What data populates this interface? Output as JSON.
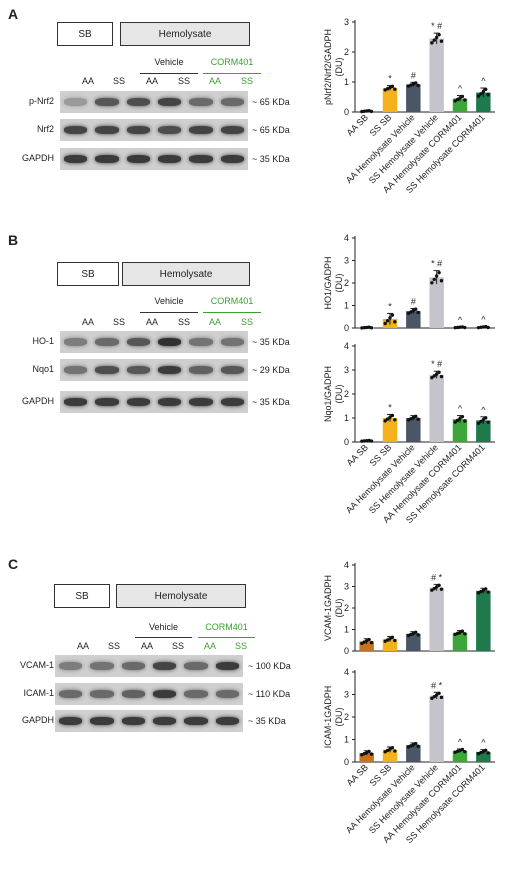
{
  "panels": {
    "A": {
      "letter": "A",
      "header": {
        "sb": "SB",
        "hemolysate": "Hemolysate",
        "vehicle": "Vehicle",
        "corm": "CORM401"
      },
      "lanes": [
        "AA",
        "SS",
        "AA",
        "SS",
        "AA",
        "SS"
      ],
      "rows": [
        {
          "label": "p-Nrf2",
          "kda": "~ 65 KDa",
          "intensity": [
            0.35,
            0.7,
            0.75,
            0.8,
            0.6,
            0.6
          ]
        },
        {
          "label": "Nrf2",
          "kda": "~ 65 KDa",
          "intensity": [
            0.8,
            0.8,
            0.8,
            0.75,
            0.8,
            0.8
          ]
        },
        {
          "label": "GAPDH",
          "kda": "~ 35 KDa",
          "intensity": [
            0.85,
            0.85,
            0.85,
            0.85,
            0.85,
            0.85
          ]
        }
      ]
    },
    "B": {
      "letter": "B",
      "header": {
        "sb": "SB",
        "hemolysate": "Hemolysate",
        "vehicle": "Vehicle",
        "corm": "CORM401"
      },
      "lanes": [
        "AA",
        "SS",
        "AA",
        "SS",
        "AA",
        "SS"
      ],
      "rows": [
        {
          "label": "HO-1",
          "kda": "~ 35 KDa",
          "intensity": [
            0.5,
            0.6,
            0.7,
            0.9,
            0.55,
            0.55
          ]
        },
        {
          "label": "Nqo1",
          "kda": "~ 29 KDa",
          "intensity": [
            0.55,
            0.75,
            0.7,
            0.85,
            0.65,
            0.7
          ]
        },
        {
          "label": "GAPDH",
          "kda": "~ 35 KDa",
          "intensity": [
            0.85,
            0.85,
            0.85,
            0.85,
            0.85,
            0.85
          ]
        }
      ]
    },
    "C": {
      "letter": "C",
      "header": {
        "sb": "SB",
        "hemolysate": "Hemolysate",
        "vehicle": "Vehicle",
        "corm": "CORM401"
      },
      "lanes": [
        "AA",
        "SS",
        "AA",
        "SS",
        "AA",
        "SS"
      ],
      "rows": [
        {
          "label": "VCAM-1",
          "kda": "~ 100 KDa",
          "intensity": [
            0.5,
            0.55,
            0.6,
            0.8,
            0.6,
            0.85
          ]
        },
        {
          "label": "ICAM-1",
          "kda": "~ 110 KDa",
          "intensity": [
            0.6,
            0.6,
            0.65,
            0.85,
            0.6,
            0.6
          ]
        },
        {
          "label": "GAPDH",
          "kda": "~ 35 KDa",
          "intensity": [
            0.85,
            0.85,
            0.85,
            0.85,
            0.85,
            0.85
          ]
        }
      ]
    }
  },
  "chart_data": [
    {
      "type": "bar",
      "panel": "A",
      "ylabel": "pNrf2/Nrf2/GADPH",
      "ylabel2": "(DU)",
      "ylim": [
        0,
        3
      ],
      "yticks": [
        0,
        1,
        2,
        3
      ],
      "categories": [
        "AA SB",
        "SS SB",
        "AA Hemolysate Vehicle",
        "SS Hemolysate Vehicle",
        "AA Hemolysate CORM401",
        "SS Hemolysate CORM401"
      ],
      "values": [
        0.03,
        0.8,
        0.92,
        2.45,
        0.45,
        0.65
      ],
      "errors": [
        0.02,
        0.08,
        0.07,
        0.18,
        0.1,
        0.15
      ],
      "annotations": [
        "",
        "*",
        "#",
        "* #",
        "^",
        "^"
      ],
      "colors": [
        "#c8721c",
        "#f3b21c",
        "#4a5665",
        "#c5c4cc",
        "#3da63a",
        "#1e7a4d"
      ]
    },
    {
      "type": "bar",
      "panel": "B",
      "ylabel": "HO1/GADPH",
      "ylabel2": "(DU)",
      "ylim": [
        0,
        4
      ],
      "yticks": [
        0,
        1,
        2,
        3,
        4
      ],
      "categories": [
        "AA SB",
        "SS SB",
        "AA Hemolysate Vehicle",
        "SS Hemolysate Vehicle",
        "AA Hemolysate CORM401",
        "SS Hemolysate CORM401"
      ],
      "values": [
        0.02,
        0.4,
        0.75,
        2.25,
        0.03,
        0.04
      ],
      "errors": [
        0.02,
        0.25,
        0.12,
        0.3,
        0.02,
        0.03
      ],
      "annotations": [
        "",
        "*",
        "#",
        "* #",
        "^",
        "^"
      ],
      "colors": [
        "#c8721c",
        "#f3b21c",
        "#4a5665",
        "#c5c4cc",
        "#3da63a",
        "#1e7a4d"
      ]
    },
    {
      "type": "bar",
      "panel": "B",
      "ylabel": "Nqo1/GADPH",
      "ylabel2": "(DU)",
      "ylim": [
        0,
        4
      ],
      "yticks": [
        0,
        1,
        2,
        3,
        4
      ],
      "categories": [
        "AA SB",
        "SS SB",
        "AA Hemolysate Vehicle",
        "SS Hemolysate Vehicle",
        "AA Hemolysate CORM401",
        "SS Hemolysate CORM401"
      ],
      "values": [
        0.05,
        1.0,
        1.0,
        2.8,
        0.95,
        0.9
      ],
      "errors": [
        0.02,
        0.15,
        0.1,
        0.15,
        0.15,
        0.15
      ],
      "annotations": [
        "",
        "*",
        "",
        "* #",
        "^",
        "^"
      ],
      "colors": [
        "#c8721c",
        "#f3b21c",
        "#4a5665",
        "#c5c4cc",
        "#3da63a",
        "#1e7a4d"
      ]
    },
    {
      "type": "bar",
      "panel": "C",
      "ylabel": "VCAM-1GADPH",
      "ylabel2": "(DU)",
      "ylim": [
        0,
        4
      ],
      "yticks": [
        0,
        1,
        2,
        3,
        4
      ],
      "categories": [
        "AA SB",
        "SS SB",
        "AA Hemolysate Vehicle",
        "SS Hemolysate Vehicle",
        "AA Hemolysate CORM401",
        "SS Hemolysate CORM401"
      ],
      "values": [
        0.45,
        0.55,
        0.8,
        2.95,
        0.85,
        2.8
      ],
      "errors": [
        0.12,
        0.12,
        0.1,
        0.15,
        0.1,
        0.12
      ],
      "annotations": [
        "",
        "",
        "",
        "# *",
        "",
        ""
      ],
      "colors": [
        "#c8721c",
        "#f3b21c",
        "#4a5665",
        "#c5c4cc",
        "#3da63a",
        "#1e7a4d"
      ]
    },
    {
      "type": "bar",
      "panel": "C",
      "ylabel": "ICAM-1GADPH",
      "ylabel2": "(DU)",
      "ylim": [
        0,
        4
      ],
      "yticks": [
        0,
        1,
        2,
        3,
        4
      ],
      "categories": [
        "AA SB",
        "SS SB",
        "AA Hemolysate Vehicle",
        "SS Hemolysate Vehicle",
        "AA Hemolysate CORM401",
        "SS Hemolysate CORM401"
      ],
      "values": [
        0.4,
        0.55,
        0.75,
        2.95,
        0.5,
        0.45
      ],
      "errors": [
        0.1,
        0.12,
        0.1,
        0.15,
        0.08,
        0.1
      ],
      "annotations": [
        "",
        "",
        "",
        "# *",
        "^",
        "^"
      ],
      "colors": [
        "#c8721c",
        "#f3b21c",
        "#4a5665",
        "#c5c4cc",
        "#3da63a",
        "#1e7a4d"
      ]
    }
  ]
}
